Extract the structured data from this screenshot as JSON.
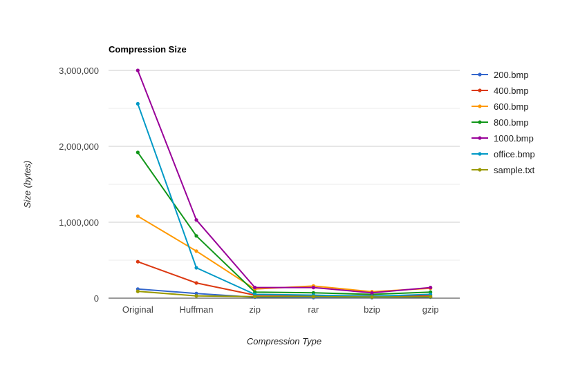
{
  "chart_data": {
    "type": "line",
    "title": "Compression Size",
    "xlabel": "Compression Type",
    "ylabel": "Size (bytes)",
    "categories": [
      "Original",
      "Huffman",
      "zip",
      "rar",
      "bzip",
      "gzip"
    ],
    "ylim": [
      0,
      3000000
    ],
    "yticks": [
      0,
      1000000,
      2000000,
      3000000
    ],
    "ytick_labels": [
      "0",
      "1,000,000",
      "2,000,000",
      "3,000,000"
    ],
    "grid": true,
    "legend_position": "right",
    "series": [
      {
        "name": "200.bmp",
        "color": "#3366cc",
        "values": [
          120000,
          62000,
          12000,
          8000,
          8000,
          12000
        ]
      },
      {
        "name": "400.bmp",
        "color": "#dc3912",
        "values": [
          480000,
          200000,
          40000,
          35000,
          30000,
          30000
        ]
      },
      {
        "name": "600.bmp",
        "color": "#ff9900",
        "values": [
          1080000,
          620000,
          120000,
          160000,
          85000,
          130000
        ]
      },
      {
        "name": "800.bmp",
        "color": "#109618",
        "values": [
          1920000,
          820000,
          80000,
          70000,
          50000,
          80000
        ]
      },
      {
        "name": "1000.bmp",
        "color": "#990099",
        "values": [
          3000000,
          1030000,
          140000,
          140000,
          70000,
          140000
        ]
      },
      {
        "name": "office.bmp",
        "color": "#0099c6",
        "values": [
          2560000,
          400000,
          50000,
          40000,
          25000,
          50000
        ]
      },
      {
        "name": "sample.txt",
        "color": "#999900",
        "values": [
          90000,
          30000,
          20000,
          20000,
          15000,
          18000
        ]
      }
    ]
  }
}
